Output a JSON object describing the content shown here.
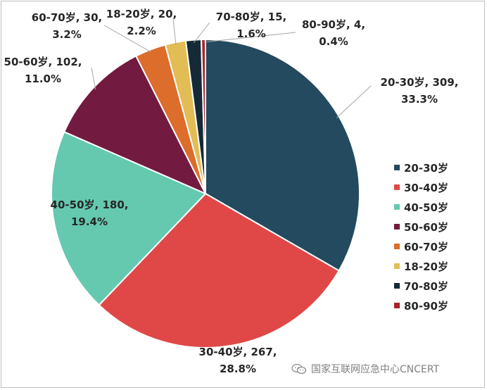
{
  "chart_data": {
    "type": "pie",
    "slices": [
      {
        "category": "20-30岁",
        "value": 309,
        "percent": "33.3%",
        "color": "#234a5e",
        "label_lines": [
          "20-30岁, 309,",
          "33.3%"
        ]
      },
      {
        "category": "30-40岁",
        "value": 267,
        "percent": "28.8%",
        "color": "#e04848",
        "label_lines": [
          "30-40岁, 267,",
          "28.8%"
        ]
      },
      {
        "category": "40-50岁",
        "value": 180,
        "percent": "19.4%",
        "color": "#64c9af",
        "label_lines": [
          "40-50岁, 180,",
          "19.4%"
        ]
      },
      {
        "category": "50-60岁",
        "value": 102,
        "percent": "11.0%",
        "color": "#721a3f",
        "label_lines": [
          "50-60岁, 102,",
          "11.0%"
        ]
      },
      {
        "category": "60-70岁",
        "value": 30,
        "percent": "3.2%",
        "color": "#dc6d2a",
        "label_lines": [
          "60-70岁, 30,",
          "3.2%"
        ]
      },
      {
        "category": "18-20岁",
        "value": 20,
        "percent": "2.2%",
        "color": "#e2bd55",
        "label_lines": [
          "18-20岁, 20,",
          "2.2%"
        ]
      },
      {
        "category": "70-80岁",
        "value": 15,
        "percent": "1.6%",
        "color": "#152a36",
        "label_lines": [
          "70-80岁, 15,",
          "1.6%"
        ]
      },
      {
        "category": "80-90岁",
        "value": 4,
        "percent": "0.4%",
        "color": "#a8232a",
        "label_lines": [
          "80-90岁, 4,",
          "0.4%"
        ]
      }
    ],
    "legend": [
      "20-30岁",
      "30-40岁",
      "40-50岁",
      "50-60岁",
      "60-70岁",
      "18-20岁",
      "70-80岁",
      "80-90岁"
    ],
    "legend_position": "right",
    "label_format": "category, value, percent"
  },
  "watermark": {
    "text": "国家互联网应急中心CNCERT",
    "icon": "wechat-icon"
  }
}
